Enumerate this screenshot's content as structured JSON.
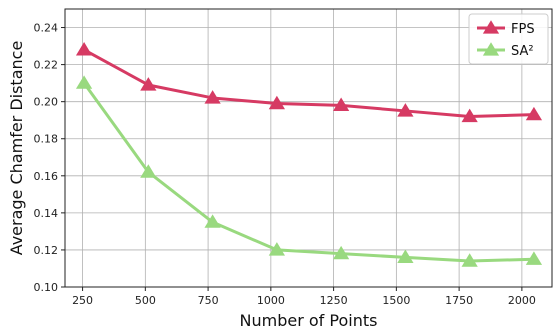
{
  "chart_data": {
    "type": "line",
    "xlabel": "Number of Points",
    "ylabel": "Average Chamfer Distance",
    "xlim": [
      180,
      2120
    ],
    "ylim": [
      0.1,
      0.25
    ],
    "x_ticks": [
      250,
      500,
      750,
      1000,
      1250,
      1500,
      1750,
      2000
    ],
    "x_tick_labels": [
      "250",
      "500",
      "750",
      "1000",
      "1250",
      "1500",
      "1750",
      "2000"
    ],
    "y_ticks": [
      0.1,
      0.12,
      0.14,
      0.16,
      0.18,
      0.2,
      0.22,
      0.24
    ],
    "y_tick_labels": [
      "0.10",
      "0.12",
      "0.14",
      "0.16",
      "0.18",
      "0.20",
      "0.22",
      "0.24"
    ],
    "grid": true,
    "legend_position": "top-right",
    "x": [
      256,
      512,
      768,
      1024,
      1280,
      1536,
      1792,
      2048
    ],
    "series": [
      {
        "name": "FPS",
        "color": "#d63a63",
        "marker": "triangle",
        "values": [
          0.228,
          0.209,
          0.202,
          0.199,
          0.198,
          0.195,
          0.192,
          0.193
        ]
      },
      {
        "name": "SA²",
        "color": "#99d97f",
        "marker": "triangle",
        "values": [
          0.21,
          0.162,
          0.135,
          0.12,
          0.118,
          0.116,
          0.114,
          0.115
        ]
      }
    ]
  }
}
